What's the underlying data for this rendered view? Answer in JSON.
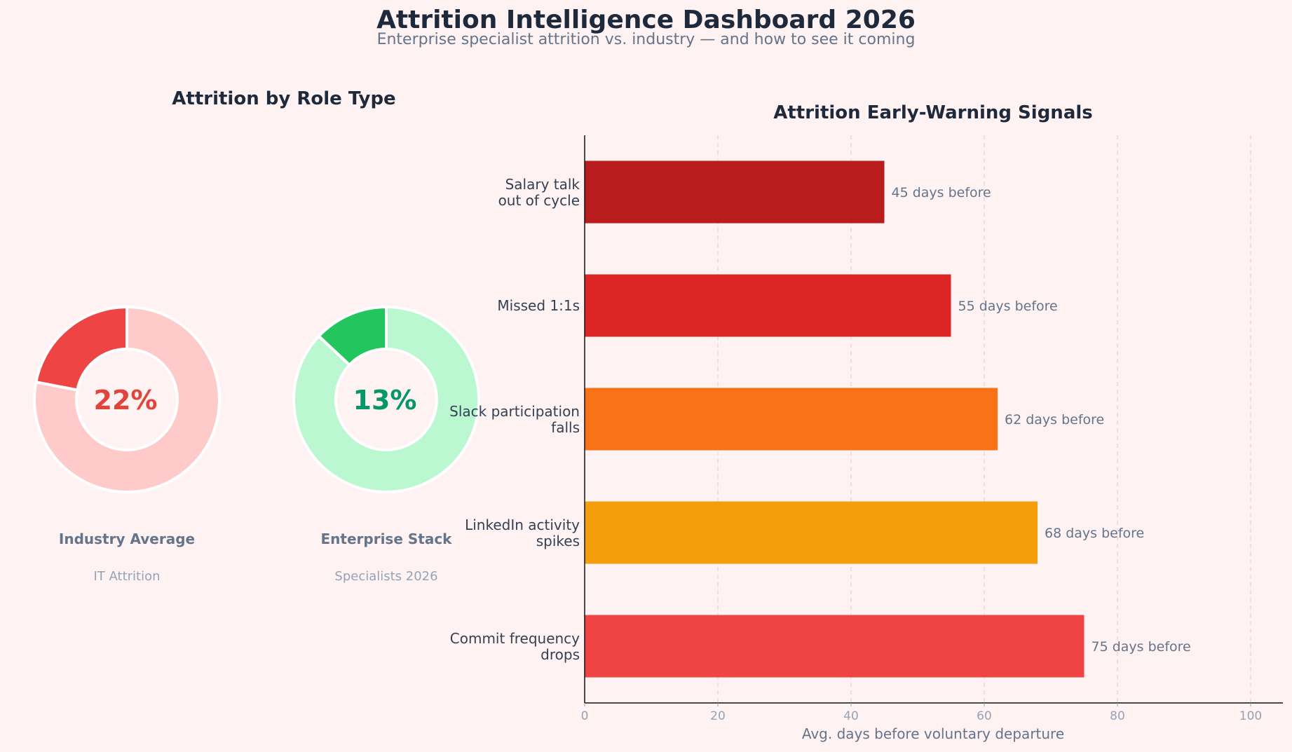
{
  "header": {
    "title": "Attrition Intelligence Dashboard 2026",
    "subtitle": "Enterprise specialist attrition vs. industry — and how to see it coming"
  },
  "chart_data": [
    {
      "type": "pie",
      "title": "Attrition by Role Type",
      "donuts": [
        {
          "value": 22,
          "center_label": "22%",
          "label": "Industry Average",
          "sublabel": "IT Attrition",
          "color_main": "#ef4444",
          "color_rest": "#fecaca",
          "text_color": "#e0453c"
        },
        {
          "value": 13,
          "center_label": "13%",
          "label": "Enterprise Stack",
          "sublabel": "Specialists 2026",
          "color_main": "#22c55e",
          "color_rest": "#bbf7d0",
          "text_color": "#059669"
        }
      ]
    },
    {
      "type": "bar",
      "orientation": "horizontal",
      "title": "Attrition Early-Warning Signals",
      "xlabel": "Avg. days before voluntary departure",
      "xlim": [
        0,
        105
      ],
      "xticks": [
        0,
        20,
        40,
        60,
        80,
        100
      ],
      "grid": true,
      "categories": [
        [
          "Salary talk",
          "out of cycle"
        ],
        [
          "Missed 1:1s"
        ],
        [
          "Slack participation",
          "falls"
        ],
        [
          "LinkedIn activity",
          "spikes"
        ],
        [
          "Commit frequency",
          "drops"
        ]
      ],
      "values": [
        45,
        55,
        62,
        68,
        75
      ],
      "data_labels": [
        "45 days before",
        "55 days before",
        "62 days before",
        "68 days before",
        "75 days before"
      ],
      "colors": [
        "#b91c1c",
        "#dc2626",
        "#f97316",
        "#f59e0b",
        "#ef4444"
      ]
    }
  ]
}
